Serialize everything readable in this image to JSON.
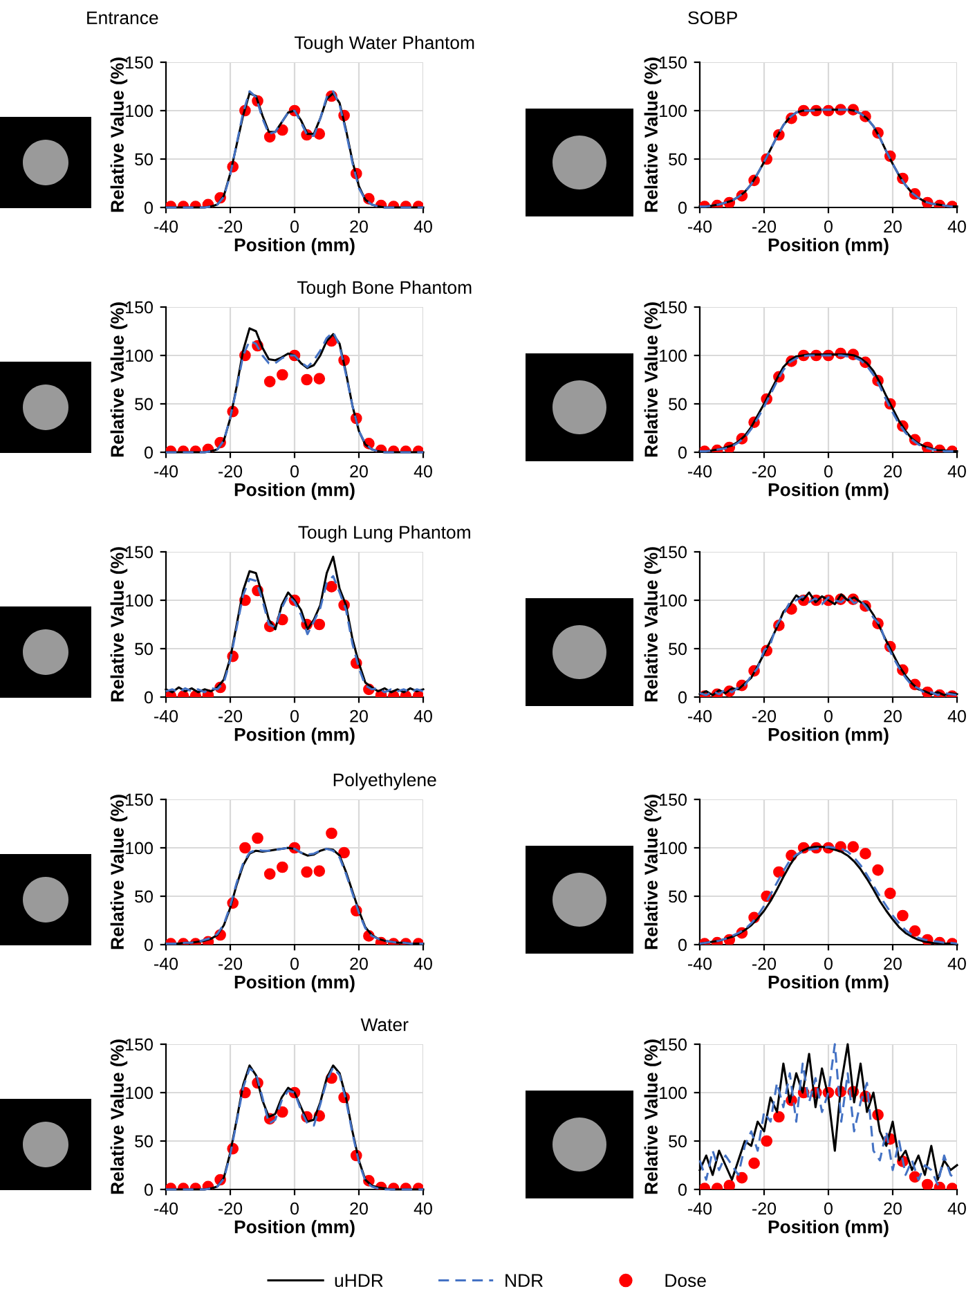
{
  "chart_data": [
    {
      "type": "line",
      "subtitle": "Entrance",
      "title": "Tough Water Phantom",
      "xlabel": "Position (mm)",
      "ylabel": "Relative Value (%)",
      "xlim": [
        -40,
        40
      ],
      "ylim": [
        0,
        150
      ],
      "xticks": [
        -40,
        -20,
        0,
        20,
        40
      ],
      "yticks": [
        0,
        50,
        100,
        150
      ],
      "grid": true,
      "legend": "bottom",
      "x": [
        -40,
        -38,
        -36,
        -34,
        -32,
        -30,
        -28,
        -26,
        -24,
        -22,
        -20,
        -18,
        -16,
        -14,
        -12,
        -10,
        -8,
        -6,
        -4,
        -2,
        0,
        2,
        4,
        6,
        8,
        10,
        12,
        14,
        16,
        18,
        20,
        22,
        24,
        26,
        28,
        30,
        32,
        34,
        36,
        38,
        40
      ],
      "series": [
        {
          "name": "uHDR",
          "color": "#000000",
          "line_style": "solid",
          "values": [
            0,
            0,
            0,
            0,
            0,
            0,
            0,
            1,
            3,
            12,
            35,
            65,
            95,
            118,
            115,
            95,
            78,
            78,
            88,
            98,
            100,
            90,
            76,
            76,
            92,
            112,
            118,
            108,
            80,
            48,
            22,
            8,
            3,
            1,
            0,
            0,
            0,
            0,
            0,
            0,
            0
          ]
        },
        {
          "name": "NDR",
          "color": "#4472c4",
          "line_style": "dashed",
          "values": [
            0,
            0,
            0,
            0,
            0,
            0,
            0,
            1,
            3,
            11,
            34,
            66,
            98,
            120,
            114,
            92,
            76,
            78,
            88,
            98,
            100,
            88,
            74,
            74,
            92,
            114,
            120,
            106,
            78,
            46,
            20,
            8,
            3,
            1,
            0,
            0,
            0,
            0,
            0,
            0,
            0
          ]
        },
        {
          "name": "Dose",
          "type": "scatter",
          "marker": "circle",
          "color": "#ff0000",
          "x": [
            -38.5,
            -34.6,
            -30.8,
            -26.9,
            -23.1,
            -19.2,
            -15.4,
            -11.5,
            -7.7,
            -3.8,
            0,
            3.8,
            7.7,
            11.5,
            15.4,
            19.2,
            23.1,
            26.9,
            30.8,
            34.6,
            38.5
          ],
          "values": [
            1,
            1,
            1,
            3,
            10,
            42,
            100,
            110,
            73,
            80,
            100,
            75,
            76,
            115,
            95,
            35,
            9,
            2,
            1,
            1,
            1
          ]
        }
      ]
    },
    {
      "type": "line",
      "subtitle": "SOBP",
      "xlabel": "Position (mm)",
      "ylabel": "Relative Value (%)",
      "xlim": [
        -40,
        40
      ],
      "ylim": [
        0,
        150
      ],
      "xticks": [
        -40,
        -20,
        0,
        20,
        40
      ],
      "yticks": [
        0,
        50,
        100,
        150
      ],
      "grid": true,
      "x": [
        -40,
        -38,
        -36,
        -34,
        -32,
        -30,
        -28,
        -26,
        -24,
        -22,
        -20,
        -18,
        -16,
        -14,
        -12,
        -10,
        -8,
        -6,
        -4,
        -2,
        0,
        2,
        4,
        6,
        8,
        10,
        12,
        14,
        16,
        18,
        20,
        22,
        24,
        26,
        28,
        30,
        32,
        34,
        36,
        38,
        40
      ],
      "series": [
        {
          "name": "uHDR",
          "color": "#000000",
          "line_style": "solid",
          "values": [
            1,
            1,
            2,
            3,
            5,
            7,
            11,
            16,
            24,
            35,
            47,
            60,
            73,
            85,
            93,
            98,
            100,
            100,
            101,
            101,
            101,
            101,
            101,
            101,
            100,
            97,
            92,
            84,
            72,
            58,
            45,
            33,
            23,
            15,
            10,
            6,
            4,
            3,
            2,
            1,
            1
          ]
        },
        {
          "name": "NDR",
          "color": "#4472c4",
          "line_style": "dashed",
          "values": [
            1,
            1,
            2,
            3,
            5,
            7,
            11,
            16,
            24,
            35,
            47,
            60,
            73,
            85,
            93,
            98,
            100,
            100,
            100,
            101,
            101,
            101,
            101,
            101,
            100,
            97,
            92,
            84,
            72,
            58,
            45,
            33,
            23,
            15,
            10,
            6,
            4,
            3,
            2,
            1,
            1
          ]
        },
        {
          "name": "Dose",
          "type": "scatter",
          "marker": "circle",
          "color": "#ff0000",
          "x": [
            -38.5,
            -34.6,
            -30.8,
            -26.9,
            -23.1,
            -19.2,
            -15.4,
            -11.5,
            -7.7,
            -3.8,
            0,
            3.8,
            7.7,
            11.5,
            15.4,
            19.2,
            23.1,
            26.9,
            30.8,
            34.6,
            38.5
          ],
          "values": [
            1,
            2,
            5,
            12,
            28,
            50,
            75,
            92,
            100,
            100,
            100,
            101,
            101,
            94,
            77,
            53,
            30,
            14,
            5,
            2,
            1
          ]
        }
      ]
    },
    {
      "type": "line",
      "title": "Tough Bone Phantom",
      "xlabel": "Position (mm)",
      "ylabel": "Relative Value (%)",
      "xlim": [
        -40,
        40
      ],
      "ylim": [
        0,
        150
      ],
      "xticks": [
        -40,
        -20,
        0,
        20,
        40
      ],
      "yticks": [
        0,
        50,
        100,
        150
      ],
      "grid": true,
      "x": [
        -40,
        -38,
        -36,
        -34,
        -32,
        -30,
        -28,
        -26,
        -24,
        -22,
        -20,
        -18,
        -16,
        -14,
        -12,
        -10,
        -8,
        -6,
        -4,
        -2,
        0,
        2,
        4,
        6,
        8,
        10,
        12,
        14,
        16,
        18,
        20,
        22,
        24,
        26,
        28,
        30,
        32,
        34,
        36,
        38,
        40
      ],
      "series": [
        {
          "name": "uHDR",
          "color": "#000000",
          "line_style": "solid",
          "values": [
            0,
            0,
            0,
            0,
            0,
            0,
            0,
            1,
            3,
            12,
            35,
            68,
            105,
            128,
            125,
            108,
            96,
            95,
            98,
            102,
            100,
            92,
            87,
            90,
            100,
            115,
            122,
            112,
            82,
            48,
            22,
            8,
            3,
            1,
            0,
            0,
            0,
            0,
            0,
            0,
            0
          ]
        },
        {
          "name": "NDR",
          "color": "#4472c4",
          "line_style": "dashed",
          "values": [
            0,
            0,
            0,
            0,
            0,
            0,
            0,
            1,
            3,
            12,
            36,
            66,
            100,
            115,
            112,
            100,
            92,
            92,
            97,
            100,
            100,
            93,
            88,
            95,
            105,
            118,
            124,
            110,
            80,
            48,
            22,
            9,
            3,
            1,
            0,
            0,
            0,
            0,
            0,
            0,
            0
          ]
        },
        {
          "name": "Dose",
          "type": "scatter",
          "marker": "circle",
          "color": "#ff0000",
          "x": [
            -38.5,
            -34.6,
            -30.8,
            -26.9,
            -23.1,
            -19.2,
            -15.4,
            -11.5,
            -7.7,
            -3.8,
            0,
            3.8,
            7.7,
            11.5,
            15.4,
            19.2,
            23.1,
            26.9,
            30.8,
            34.6,
            38.5
          ],
          "values": [
            1,
            1,
            1,
            3,
            10,
            42,
            100,
            110,
            73,
            80,
            100,
            75,
            76,
            115,
            95,
            35,
            9,
            2,
            1,
            1,
            1
          ]
        }
      ]
    },
    {
      "type": "line",
      "xlabel": "Position (mm)",
      "ylabel": "Relative Value (%)",
      "xlim": [
        -40,
        40
      ],
      "ylim": [
        0,
        150
      ],
      "xticks": [
        -40,
        -20,
        0,
        20,
        40
      ],
      "yticks": [
        0,
        50,
        100,
        150
      ],
      "grid": true,
      "x": [
        -40,
        -38,
        -36,
        -34,
        -32,
        -30,
        -28,
        -26,
        -24,
        -22,
        -20,
        -18,
        -16,
        -14,
        -12,
        -10,
        -8,
        -6,
        -4,
        -2,
        0,
        2,
        4,
        6,
        8,
        10,
        12,
        14,
        16,
        18,
        20,
        22,
        24,
        26,
        28,
        30,
        32,
        34,
        36,
        38,
        40
      ],
      "series": [
        {
          "name": "uHDR",
          "color": "#000000",
          "line_style": "solid",
          "values": [
            1,
            1,
            2,
            3,
            5,
            7,
            11,
            17,
            26,
            38,
            50,
            63,
            76,
            88,
            95,
            99,
            100,
            101,
            101,
            101,
            101,
            101,
            101,
            101,
            100,
            97,
            92,
            84,
            72,
            58,
            45,
            32,
            22,
            14,
            9,
            6,
            4,
            2,
            2,
            1,
            1
          ]
        },
        {
          "name": "NDR",
          "color": "#4472c4",
          "line_style": "dashed",
          "values": [
            1,
            1,
            2,
            3,
            4,
            6,
            10,
            15,
            24,
            35,
            47,
            60,
            73,
            85,
            93,
            97,
            99,
            100,
            100,
            100,
            100,
            100,
            100,
            99,
            98,
            95,
            89,
            80,
            68,
            54,
            41,
            29,
            20,
            13,
            8,
            5,
            3,
            2,
            1,
            1,
            1
          ]
        },
        {
          "name": "Dose",
          "type": "scatter",
          "marker": "circle",
          "color": "#ff0000",
          "x": [
            -38.5,
            -34.6,
            -30.8,
            -26.9,
            -23.1,
            -19.2,
            -15.4,
            -11.5,
            -7.7,
            -3.8,
            0,
            3.8,
            7.7,
            11.5,
            15.4,
            19.2,
            23.1,
            26.9,
            30.8,
            34.6,
            38.5
          ],
          "values": [
            1,
            2,
            5,
            14,
            31,
            55,
            78,
            94,
            100,
            100,
            100,
            102,
            101,
            93,
            74,
            50,
            27,
            13,
            5,
            2,
            1
          ]
        }
      ]
    },
    {
      "type": "line",
      "title": "Tough Lung Phantom",
      "xlabel": "Position (mm)",
      "ylabel": "Relative Value (%)",
      "xlim": [
        -40,
        40
      ],
      "ylim": [
        0,
        150
      ],
      "xticks": [
        -40,
        -20,
        0,
        20,
        40
      ],
      "yticks": [
        0,
        50,
        100,
        150
      ],
      "grid": true,
      "x": [
        -40,
        -38,
        -36,
        -34,
        -32,
        -30,
        -28,
        -26,
        -24,
        -22,
        -20,
        -18,
        -16,
        -14,
        -12,
        -10,
        -8,
        -6,
        -4,
        -2,
        0,
        2,
        4,
        6,
        8,
        10,
        12,
        14,
        16,
        18,
        20,
        22,
        24,
        26,
        28,
        30,
        32,
        34,
        36,
        38,
        40
      ],
      "series": [
        {
          "name": "uHDR",
          "color": "#000000",
          "line_style": "solid",
          "values": [
            8,
            5,
            10,
            6,
            9,
            5,
            8,
            6,
            10,
            18,
            40,
            75,
            110,
            130,
            128,
            105,
            80,
            70,
            95,
            108,
            100,
            90,
            70,
            80,
            95,
            128,
            145,
            112,
            95,
            60,
            35,
            15,
            10,
            6,
            9,
            5,
            8,
            5,
            9,
            6,
            8
          ]
        },
        {
          "name": "NDR",
          "color": "#4472c4",
          "line_style": "dashed",
          "values": [
            6,
            8,
            5,
            9,
            6,
            8,
            5,
            9,
            8,
            15,
            38,
            72,
            105,
            122,
            120,
            100,
            75,
            72,
            92,
            105,
            98,
            85,
            65,
            78,
            92,
            118,
            125,
            108,
            90,
            55,
            30,
            12,
            8,
            9,
            5,
            8,
            6,
            8,
            5,
            8,
            6
          ]
        },
        {
          "name": "Dose",
          "type": "scatter",
          "marker": "circle",
          "color": "#ff0000",
          "x": [
            -38.5,
            -34.6,
            -30.8,
            -26.9,
            -23.1,
            -19.2,
            -15.4,
            -11.5,
            -7.7,
            -3.8,
            0,
            3.8,
            7.7,
            11.5,
            15.4,
            19.2,
            23.1,
            26.9,
            30.8,
            34.6,
            38.5
          ],
          "values": [
            1,
            1,
            1,
            2,
            10,
            42,
            100,
            110,
            73,
            80,
            100,
            75,
            75,
            114,
            95,
            35,
            8,
            2,
            1,
            1,
            1
          ]
        }
      ]
    },
    {
      "type": "line",
      "xlabel": "Position (mm)",
      "ylabel": "Relative Value (%)",
      "xlim": [
        -40,
        40
      ],
      "ylim": [
        0,
        150
      ],
      "xticks": [
        -40,
        -20,
        0,
        20,
        40
      ],
      "yticks": [
        0,
        50,
        100,
        150
      ],
      "grid": true,
      "x": [
        -40,
        -38,
        -36,
        -34,
        -32,
        -30,
        -28,
        -26,
        -24,
        -22,
        -20,
        -18,
        -16,
        -14,
        -12,
        -10,
        -8,
        -6,
        -4,
        -2,
        0,
        2,
        4,
        6,
        8,
        10,
        12,
        14,
        16,
        18,
        20,
        22,
        24,
        26,
        28,
        30,
        32,
        34,
        36,
        38,
        40
      ],
      "series": [
        {
          "name": "uHDR",
          "color": "#000000",
          "line_style": "solid",
          "values": [
            3,
            6,
            2,
            7,
            4,
            9,
            8,
            14,
            20,
            32,
            45,
            58,
            72,
            88,
            95,
            105,
            100,
            108,
            98,
            104,
            100,
            96,
            106,
            100,
            103,
            98,
            95,
            85,
            72,
            58,
            45,
            32,
            22,
            14,
            8,
            6,
            3,
            5,
            2,
            4,
            3
          ]
        },
        {
          "name": "NDR",
          "color": "#4472c4",
          "line_style": "dashed",
          "values": [
            4,
            2,
            6,
            3,
            8,
            5,
            10,
            12,
            22,
            30,
            48,
            55,
            75,
            85,
            98,
            100,
            104,
            98,
            102,
            96,
            103,
            100,
            98,
            104,
            97,
            100,
            92,
            82,
            75,
            55,
            42,
            30,
            20,
            12,
            9,
            4,
            5,
            2,
            4,
            3,
            2
          ]
        },
        {
          "name": "Dose",
          "type": "scatter",
          "marker": "circle",
          "color": "#ff0000",
          "x": [
            -38.5,
            -34.6,
            -30.8,
            -26.9,
            -23.1,
            -19.2,
            -15.4,
            -11.5,
            -7.7,
            -3.8,
            0,
            3.8,
            7.7,
            11.5,
            15.4,
            19.2,
            23.1,
            26.9,
            30.8,
            34.6,
            38.5
          ],
          "values": [
            1,
            3,
            6,
            12,
            27,
            48,
            74,
            91,
            100,
            100,
            100,
            101,
            101,
            94,
            76,
            52,
            28,
            13,
            5,
            2,
            1
          ]
        }
      ]
    },
    {
      "type": "line",
      "title": "Polyethylene",
      "xlabel": "Position (mm)",
      "ylabel": "Relative Value (%)",
      "xlim": [
        -40,
        40
      ],
      "ylim": [
        0,
        150
      ],
      "xticks": [
        -40,
        -20,
        0,
        20,
        40
      ],
      "yticks": [
        0,
        50,
        100,
        150
      ],
      "grid": true,
      "x": [
        -40,
        -38,
        -36,
        -34,
        -32,
        -30,
        -28,
        -26,
        -24,
        -22,
        -20,
        -18,
        -16,
        -14,
        -12,
        -10,
        -8,
        -6,
        -4,
        -2,
        0,
        2,
        4,
        6,
        8,
        10,
        12,
        14,
        16,
        18,
        20,
        22,
        24,
        26,
        28,
        30,
        32,
        34,
        36,
        38,
        40
      ],
      "series": [
        {
          "name": "uHDR",
          "color": "#000000",
          "line_style": "solid",
          "values": [
            1,
            1,
            1,
            2,
            2,
            3,
            4,
            6,
            10,
            20,
            38,
            62,
            82,
            94,
            97,
            96,
            97,
            98,
            99,
            100,
            99,
            95,
            92,
            93,
            97,
            99,
            98,
            92,
            75,
            55,
            35,
            18,
            10,
            6,
            4,
            3,
            2,
            2,
            1,
            1,
            1
          ]
        },
        {
          "name": "NDR",
          "color": "#4472c4",
          "line_style": "dashed",
          "values": [
            1,
            1,
            1,
            2,
            2,
            3,
            5,
            7,
            11,
            21,
            40,
            64,
            84,
            95,
            98,
            97,
            97,
            98,
            99,
            100,
            99,
            95,
            93,
            94,
            97,
            99,
            97,
            90,
            73,
            53,
            33,
            17,
            9,
            6,
            4,
            3,
            2,
            2,
            1,
            1,
            1
          ]
        },
        {
          "name": "Dose",
          "type": "scatter",
          "marker": "circle",
          "color": "#ff0000",
          "x": [
            -38.5,
            -34.6,
            -30.8,
            -26.9,
            -23.1,
            -19.2,
            -15.4,
            -11.5,
            -7.7,
            -3.8,
            0,
            3.8,
            7.7,
            11.5,
            15.4,
            19.2,
            23.1,
            26.9,
            30.8,
            34.6,
            38.5
          ],
          "values": [
            1,
            1,
            1,
            3,
            10,
            43,
            100,
            110,
            73,
            80,
            100,
            75,
            76,
            115,
            95,
            35,
            9,
            2,
            1,
            1,
            1
          ]
        }
      ]
    },
    {
      "type": "line",
      "xlabel": "Position (mm)",
      "ylabel": "Relative Value (%)",
      "xlim": [
        -40,
        40
      ],
      "ylim": [
        0,
        150
      ],
      "xticks": [
        -40,
        -20,
        0,
        20,
        40
      ],
      "yticks": [
        0,
        50,
        100,
        150
      ],
      "grid": true,
      "x": [
        -40,
        -38,
        -36,
        -34,
        -32,
        -30,
        -28,
        -26,
        -24,
        -22,
        -20,
        -18,
        -16,
        -14,
        -12,
        -10,
        -8,
        -6,
        -4,
        -2,
        0,
        2,
        4,
        6,
        8,
        10,
        12,
        14,
        16,
        18,
        20,
        22,
        24,
        26,
        28,
        30,
        32,
        34,
        36,
        38,
        40
      ],
      "series": [
        {
          "name": "uHDR",
          "color": "#000000",
          "line_style": "solid",
          "values": [
            1,
            2,
            3,
            4,
            6,
            8,
            11,
            15,
            20,
            27,
            35,
            45,
            57,
            70,
            82,
            92,
            97,
            100,
            101,
            101,
            100,
            98,
            96,
            92,
            86,
            78,
            68,
            57,
            45,
            35,
            26,
            18,
            12,
            8,
            5,
            3,
            2,
            1,
            1,
            1,
            0
          ]
        },
        {
          "name": "NDR",
          "color": "#4472c4",
          "line_style": "dashed",
          "values": [
            1,
            2,
            3,
            4,
            6,
            9,
            12,
            16,
            22,
            30,
            40,
            52,
            64,
            76,
            87,
            93,
            96,
            98,
            99,
            100,
            101,
            100,
            99,
            96,
            90,
            82,
            72,
            61,
            50,
            40,
            30,
            22,
            15,
            10,
            7,
            5,
            4,
            3,
            2,
            2,
            1
          ]
        },
        {
          "name": "Dose",
          "type": "scatter",
          "marker": "circle",
          "color": "#ff0000",
          "x": [
            -38.5,
            -34.6,
            -30.8,
            -26.9,
            -23.1,
            -19.2,
            -15.4,
            -11.5,
            -7.7,
            -3.8,
            0,
            3.8,
            7.7,
            11.5,
            15.4,
            19.2,
            23.1,
            26.9,
            30.8,
            34.6,
            38.5
          ],
          "values": [
            1,
            2,
            5,
            12,
            28,
            50,
            75,
            92,
            100,
            100,
            100,
            101,
            101,
            94,
            77,
            53,
            30,
            14,
            5,
            2,
            1
          ]
        }
      ]
    },
    {
      "type": "line",
      "title": "Water",
      "xlabel": "Position (mm)",
      "ylabel": "Relative Value (%)",
      "xlim": [
        -40,
        40
      ],
      "ylim": [
        0,
        150
      ],
      "xticks": [
        -40,
        -20,
        0,
        20,
        40
      ],
      "yticks": [
        0,
        50,
        100,
        150
      ],
      "grid": true,
      "x": [
        -40,
        -38,
        -36,
        -34,
        -32,
        -30,
        -28,
        -26,
        -24,
        -22,
        -20,
        -18,
        -16,
        -14,
        -12,
        -10,
        -8,
        -6,
        -4,
        -2,
        0,
        2,
        4,
        6,
        8,
        10,
        12,
        14,
        16,
        18,
        20,
        22,
        24,
        26,
        28,
        30,
        32,
        34,
        36,
        38,
        40
      ],
      "series": [
        {
          "name": "uHDR",
          "color": "#000000",
          "line_style": "solid",
          "values": [
            0,
            0,
            0,
            0,
            0,
            0,
            0,
            1,
            3,
            12,
            38,
            72,
            108,
            128,
            118,
            92,
            75,
            78,
            95,
            105,
            100,
            85,
            70,
            72,
            90,
            115,
            128,
            120,
            95,
            60,
            30,
            10,
            4,
            2,
            1,
            0,
            0,
            0,
            0,
            0,
            0
          ]
        },
        {
          "name": "NDR",
          "color": "#4472c4",
          "line_style": "dashed",
          "values": [
            0,
            0,
            0,
            0,
            0,
            0,
            0,
            1,
            3,
            11,
            36,
            70,
            105,
            125,
            120,
            95,
            68,
            72,
            92,
            102,
            100,
            82,
            68,
            66,
            88,
            112,
            126,
            118,
            92,
            58,
            28,
            9,
            3,
            1,
            0,
            0,
            0,
            0,
            0,
            0,
            0
          ]
        },
        {
          "name": "Dose",
          "type": "scatter",
          "marker": "circle",
          "color": "#ff0000",
          "x": [
            -38.5,
            -34.6,
            -30.8,
            -26.9,
            -23.1,
            -19.2,
            -15.4,
            -11.5,
            -7.7,
            -3.8,
            0,
            3.8,
            7.7,
            11.5,
            15.4,
            19.2,
            23.1,
            26.9,
            30.8,
            34.6,
            38.5
          ],
          "values": [
            1,
            1,
            1,
            3,
            10,
            42,
            100,
            110,
            73,
            80,
            100,
            75,
            76,
            115,
            95,
            35,
            9,
            2,
            1,
            1,
            1
          ]
        }
      ]
    },
    {
      "type": "line",
      "xlabel": "Position (mm)",
      "ylabel": "Relative Value (%)",
      "xlim": [
        -40,
        40
      ],
      "ylim": [
        0,
        150
      ],
      "xticks": [
        -40,
        -20,
        0,
        20,
        40
      ],
      "yticks": [
        0,
        50,
        100,
        150
      ],
      "grid": true,
      "x": [
        -40,
        -38,
        -36,
        -34,
        -32,
        -30,
        -28,
        -26,
        -24,
        -22,
        -20,
        -18,
        -16,
        -14,
        -12,
        -10,
        -8,
        -6,
        -4,
        -2,
        0,
        2,
        4,
        6,
        8,
        10,
        12,
        14,
        16,
        18,
        20,
        22,
        24,
        26,
        28,
        30,
        32,
        34,
        36,
        38,
        40
      ],
      "series": [
        {
          "name": "uHDR",
          "color": "#000000",
          "line_style": "solid",
          "values": [
            20,
            35,
            15,
            40,
            25,
            10,
            30,
            50,
            45,
            70,
            60,
            95,
            80,
            130,
            90,
            120,
            100,
            140,
            85,
            125,
            95,
            40,
            110,
            150,
            90,
            130,
            80,
            100,
            60,
            45,
            70,
            30,
            40,
            20,
            35,
            15,
            45,
            10,
            30,
            20,
            25
          ]
        },
        {
          "name": "NDR",
          "color": "#4472c4",
          "line_style": "dashed",
          "values": [
            30,
            10,
            40,
            20,
            35,
            25,
            15,
            45,
            60,
            40,
            80,
            70,
            110,
            85,
            120,
            70,
            130,
            90,
            115,
            80,
            100,
            150,
            70,
            120,
            60,
            90,
            110,
            40,
            30,
            60,
            20,
            50,
            15,
            30,
            10,
            25,
            20,
            5,
            35,
            15,
            10
          ]
        },
        {
          "name": "Dose",
          "type": "scatter",
          "marker": "circle",
          "color": "#ff0000",
          "x": [
            -38.5,
            -34.6,
            -30.8,
            -26.9,
            -23.1,
            -19.2,
            -15.4,
            -11.5,
            -7.7,
            -3.8,
            0,
            3.8,
            7.7,
            11.5,
            15.4,
            19.2,
            23.1,
            26.9,
            30.8,
            34.6,
            38.5
          ],
          "values": [
            1,
            1,
            4,
            12,
            27,
            50,
            75,
            92,
            100,
            100,
            100,
            101,
            101,
            96,
            77,
            52,
            29,
            13,
            5,
            2,
            1
          ]
        }
      ]
    }
  ]
}
